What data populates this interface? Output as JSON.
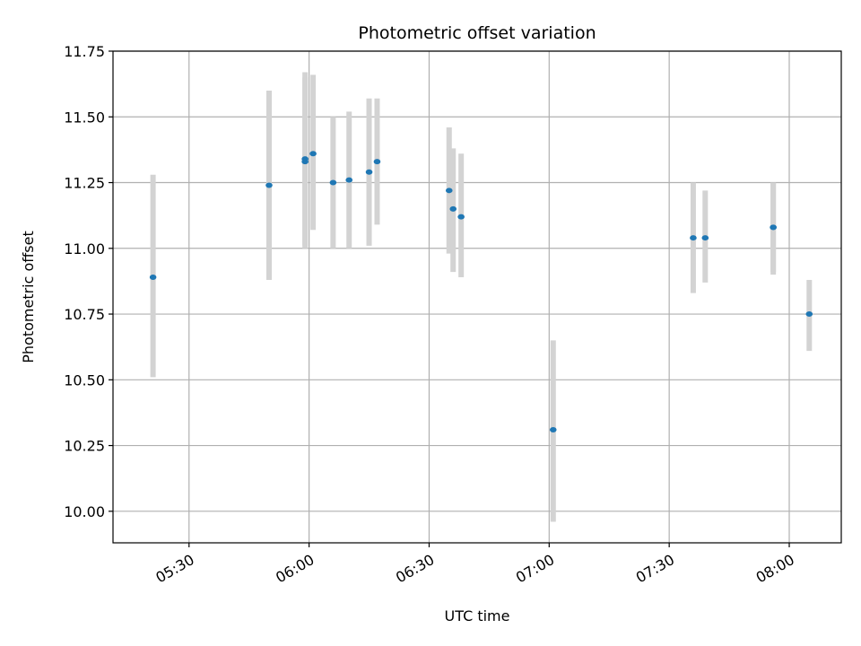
{
  "chart_data": {
    "type": "scatter",
    "title": "Photometric offset variation",
    "xlabel": "UTC time",
    "ylabel": "Photometric offset",
    "x_ticks": [
      "05:30",
      "06:00",
      "06:30",
      "07:00",
      "07:30",
      "08:00"
    ],
    "y_ticks": [
      "10.00",
      "10.25",
      "10.50",
      "10.75",
      "11.00",
      "11.25",
      "11.50",
      "11.75"
    ],
    "xlim": [
      "05:11",
      "08:13"
    ],
    "ylim": [
      9.88,
      11.75
    ],
    "grid": true,
    "colors": {
      "point": "#1f77b4",
      "errorbar": "#d3d3d3",
      "grid": "#b0b0b0"
    },
    "points": [
      {
        "x": "05:21",
        "y": 10.89,
        "ylow": 10.51,
        "yhigh": 11.28
      },
      {
        "x": "05:50",
        "y": 11.24,
        "ylow": 10.88,
        "yhigh": 11.6
      },
      {
        "x": "05:59",
        "y": 11.33,
        "ylow": 11.0,
        "yhigh": 11.65
      },
      {
        "x": "05:59",
        "y": 11.34,
        "ylow": 11.01,
        "yhigh": 11.67
      },
      {
        "x": "06:01",
        "y": 11.36,
        "ylow": 11.07,
        "yhigh": 11.66
      },
      {
        "x": "06:06",
        "y": 11.25,
        "ylow": 11.0,
        "yhigh": 11.5
      },
      {
        "x": "06:10",
        "y": 11.26,
        "ylow": 11.0,
        "yhigh": 11.52
      },
      {
        "x": "06:15",
        "y": 11.29,
        "ylow": 11.01,
        "yhigh": 11.57
      },
      {
        "x": "06:17",
        "y": 11.33,
        "ylow": 11.09,
        "yhigh": 11.57
      },
      {
        "x": "06:35",
        "y": 11.22,
        "ylow": 10.98,
        "yhigh": 11.46
      },
      {
        "x": "06:36",
        "y": 11.15,
        "ylow": 10.91,
        "yhigh": 11.38
      },
      {
        "x": "06:38",
        "y": 11.12,
        "ylow": 10.89,
        "yhigh": 11.36
      },
      {
        "x": "07:01",
        "y": 10.31,
        "ylow": 9.96,
        "yhigh": 10.65
      },
      {
        "x": "07:36",
        "y": 11.04,
        "ylow": 10.83,
        "yhigh": 11.25
      },
      {
        "x": "07:39",
        "y": 11.04,
        "ylow": 10.87,
        "yhigh": 11.22
      },
      {
        "x": "07:56",
        "y": 11.08,
        "ylow": 10.91,
        "yhigh": 11.25
      },
      {
        "x": "07:56",
        "y": 11.08,
        "ylow": 10.9,
        "yhigh": 11.25
      },
      {
        "x": "08:05",
        "y": 10.75,
        "ylow": 10.61,
        "yhigh": 10.88
      }
    ]
  }
}
